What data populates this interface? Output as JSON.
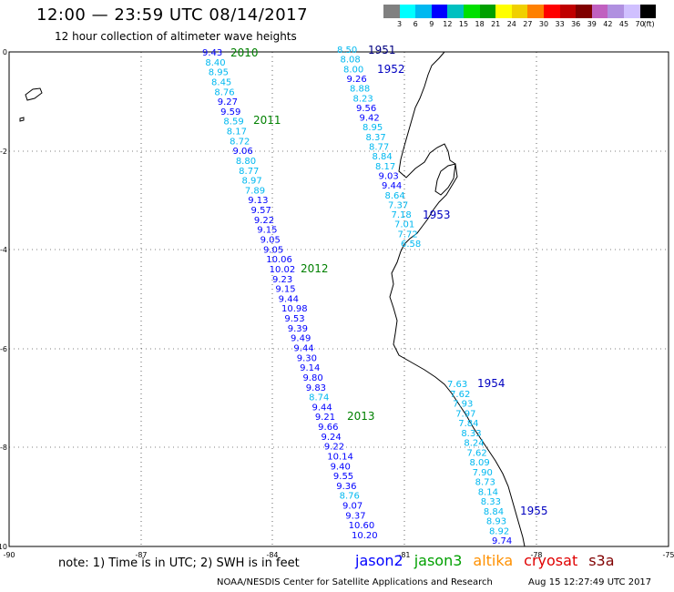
{
  "title": "12:00 — 23:59 UTC 08/14/2017",
  "subtitle": "12 hour collection of altimeter wave heights",
  "legend": {
    "colors": [
      "#808080",
      "#00ffff",
      "#00b8f0",
      "#0000ff",
      "#00c0c0",
      "#00e000",
      "#00a000",
      "#ffff00",
      "#f0d000",
      "#ff8000",
      "#ff0000",
      "#c00000",
      "#800000",
      "#c060c0",
      "#b090e0",
      "#d0c0ff",
      "#000000"
    ],
    "labels": [
      "3",
      "6",
      "9",
      "12",
      "15",
      "18",
      "21",
      "24",
      "27",
      "30",
      "33",
      "36",
      "39",
      "42",
      "45",
      "70",
      "(ft)"
    ]
  },
  "axes": {
    "x_ticks": [
      "-90",
      "-87",
      "-84",
      "-81",
      "-78",
      "-75"
    ],
    "y_ticks": [
      "0",
      "-2",
      "-4",
      "-6",
      "-8",
      "-10"
    ]
  },
  "tracks": [
    {
      "id": "left",
      "values": [
        "9.43",
        "8.40",
        "8.95",
        "8.45",
        "8.76",
        "9.27",
        "9.59",
        "8.59",
        "8.17",
        "8.72",
        "9.06",
        "8.80",
        "8.77",
        "8.97",
        "7.89",
        "9.13",
        "9.57",
        "9.22",
        "9.15",
        "9.05",
        "9.05",
        "10.06",
        "10.02",
        "9.23",
        "9.15",
        "9.44",
        "10.98",
        "9.53",
        "9.39",
        "9.49",
        "9.44",
        "9.30",
        "9.14",
        "9.80",
        "9.83",
        "8.74",
        "9.44",
        "9.21",
        "9.66",
        "9.24",
        "9.22",
        "10.14",
        "9.40",
        "9.55",
        "9.36",
        "8.76",
        "9.07",
        "9.37",
        "10.60",
        "10.20"
      ],
      "colors": [
        "#0000ff",
        "#00b8f0",
        "#00b8f0",
        "#00b8f0",
        "#00b8f0",
        "#0000ff",
        "#0000ff",
        "#00b8f0",
        "#00b8f0",
        "#00b8f0",
        "#0000ff",
        "#00b8f0",
        "#00b8f0",
        "#00b8f0",
        "#00b8f0",
        "#0000ff",
        "#0000ff",
        "#0000ff",
        "#0000ff",
        "#0000ff",
        "#0000ff",
        "#0000ff",
        "#0000ff",
        "#0000ff",
        "#0000ff",
        "#0000ff",
        "#0000ff",
        "#0000ff",
        "#0000ff",
        "#0000ff",
        "#0000ff",
        "#0000ff",
        "#0000ff",
        "#0000ff",
        "#0000ff",
        "#00b8f0",
        "#0000ff",
        "#0000ff",
        "#0000ff",
        "#0000ff",
        "#0000ff",
        "#0000ff",
        "#0000ff",
        "#0000ff",
        "#0000ff",
        "#00b8f0",
        "#0000ff",
        "#0000ff",
        "#0000ff",
        "#0000ff"
      ]
    },
    {
      "id": "middle",
      "values": [
        "8.50",
        "8.08",
        "8.00",
        "9.26",
        "8.88",
        "8.23",
        "9.56",
        "9.42",
        "8.95",
        "8.37",
        "8.77",
        "8.84",
        "8.17",
        "9.03",
        "9.44",
        "8.64",
        "7.37",
        "7.18",
        "7.01",
        "7.72",
        "6.58"
      ],
      "colors": [
        "#00b8f0",
        "#00b8f0",
        "#00b8f0",
        "#0000ff",
        "#00b8f0",
        "#00b8f0",
        "#0000ff",
        "#0000ff",
        "#00b8f0",
        "#00b8f0",
        "#00b8f0",
        "#00b8f0",
        "#00b8f0",
        "#0000ff",
        "#0000ff",
        "#00b8f0",
        "#00b8f0",
        "#00b8f0",
        "#00b8f0",
        "#00b8f0",
        "#00b8f0"
      ]
    },
    {
      "id": "right",
      "values": [
        "7.63",
        "7.62",
        "7.93",
        "7.97",
        "7.84",
        "8.33",
        "8.24",
        "7.62",
        "8.09",
        "7.90",
        "8.73",
        "8.14",
        "8.33",
        "8.84",
        "8.93",
        "8.92",
        "9.74"
      ],
      "colors": [
        "#00b8f0",
        "#00b8f0",
        "#00b8f0",
        "#00b8f0",
        "#00b8f0",
        "#00b8f0",
        "#00b8f0",
        "#00b8f0",
        "#00b8f0",
        "#00b8f0",
        "#00b8f0",
        "#00b8f0",
        "#00b8f0",
        "#00b8f0",
        "#00b8f0",
        "#00b8f0",
        "#0000ff"
      ]
    }
  ],
  "time_labels": [
    {
      "text": "2010",
      "color": "#008000"
    },
    {
      "text": "2011",
      "color": "#008000"
    },
    {
      "text": "2012",
      "color": "#008000"
    },
    {
      "text": "2013",
      "color": "#008000"
    },
    {
      "text": "1951",
      "color": "#000080"
    },
    {
      "text": "1952",
      "color": "#0000c0"
    },
    {
      "text": "1953",
      "color": "#0000c0"
    },
    {
      "text": "1954",
      "color": "#0000c0"
    },
    {
      "text": "1955",
      "color": "#0000c0"
    }
  ],
  "note": "note:  1) Time is in UTC;  2) SWH is in feet",
  "satellites": [
    {
      "name": "jason2",
      "color": "#0000ff"
    },
    {
      "name": "jason3",
      "color": "#00a000"
    },
    {
      "name": "altika",
      "color": "#ff9000"
    },
    {
      "name": "cryosat",
      "color": "#e00000"
    },
    {
      "name": "s3a",
      "color": "#800000"
    }
  ],
  "footer_left": "NOAA/NESDIS Center for Satellite Applications and Research",
  "footer_right": "Aug 15 12:27:49 UTC 2017"
}
